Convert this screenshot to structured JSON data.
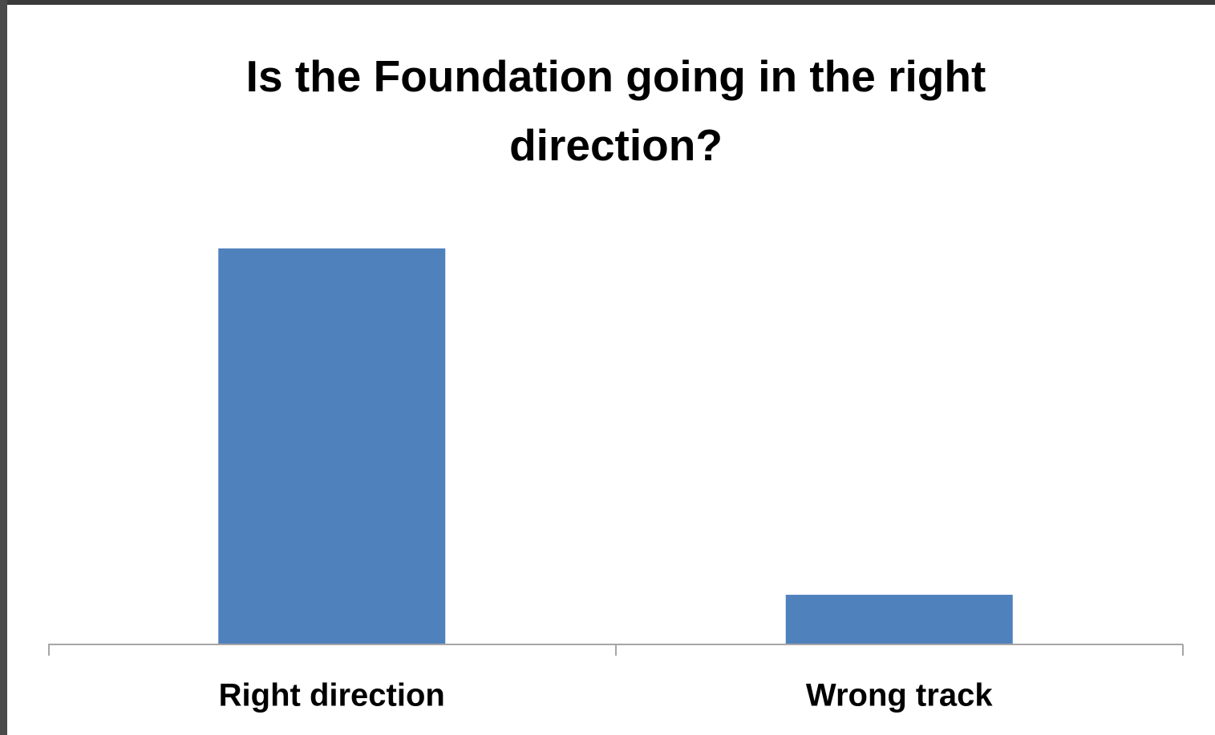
{
  "chart_data": {
    "type": "bar",
    "title": "Is the Foundation going in the right direction?",
    "categories": [
      "Right direction",
      "Wrong track"
    ],
    "values": [
      89,
      11
    ],
    "color": "#4f81bd",
    "ylim": [
      0,
      100
    ]
  }
}
